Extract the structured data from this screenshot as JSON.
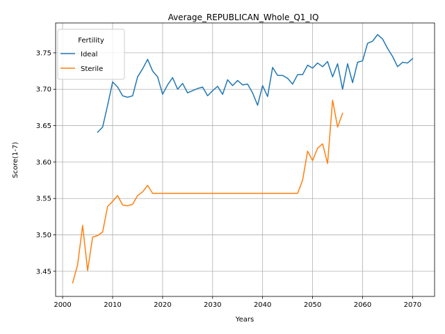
{
  "chart_data": {
    "type": "line",
    "title": "Average_REPUBLICAN_Whole_Q1_IQ",
    "xlabel": "Years",
    "ylabel": "Score(1-7)",
    "xlim": [
      1998.6,
      2074.4
    ],
    "ylim": [
      3.4155,
      3.791
    ],
    "xticks": [
      2000,
      2010,
      2020,
      2030,
      2040,
      2050,
      2060,
      2070
    ],
    "yticks": [
      3.45,
      3.5,
      3.55,
      3.6,
      3.65,
      3.7,
      3.75
    ],
    "grid": true,
    "legend": {
      "title": "Fertility",
      "placement": "upper-left"
    },
    "series": [
      {
        "name": "Ideal",
        "color": "#1f77b4",
        "x": [
          2007,
          2008,
          2009,
          2010,
          2011,
          2012,
          2013,
          2014,
          2015,
          2016,
          2017,
          2018,
          2019,
          2020,
          2021,
          2022,
          2023,
          2024,
          2025,
          2026,
          2027,
          2028,
          2029,
          2030,
          2031,
          2032,
          2033,
          2034,
          2035,
          2036,
          2037,
          2038,
          2039,
          2040,
          2041,
          2042,
          2043,
          2044,
          2045,
          2046,
          2047,
          2048,
          2049,
          2050,
          2051,
          2052,
          2053,
          2054,
          2055,
          2056,
          2057,
          2058,
          2059,
          2060,
          2061,
          2062,
          2063,
          2064,
          2065,
          2066,
          2067,
          2068,
          2069,
          2070
        ],
        "y": [
          3.641,
          3.648,
          3.678,
          3.71,
          3.703,
          3.691,
          3.689,
          3.691,
          3.717,
          3.728,
          3.741,
          3.725,
          3.717,
          3.693,
          3.706,
          3.716,
          3.7,
          3.708,
          3.695,
          3.698,
          3.701,
          3.703,
          3.691,
          3.698,
          3.704,
          3.693,
          3.713,
          3.705,
          3.712,
          3.706,
          3.707,
          3.695,
          3.678,
          3.705,
          3.69,
          3.73,
          3.719,
          3.719,
          3.715,
          3.707,
          3.72,
          3.72,
          3.733,
          3.729,
          3.736,
          3.731,
          3.738,
          3.717,
          3.735,
          3.7,
          3.735,
          3.709,
          3.737,
          3.739,
          3.763,
          3.766,
          3.775,
          3.769,
          3.756,
          3.745,
          3.731,
          3.737,
          3.736,
          3.742
        ]
      },
      {
        "name": "Sterile",
        "color": "#ff7f0e",
        "x": [
          2002,
          2003,
          2004,
          2005,
          2006,
          2007,
          2008,
          2009,
          2010,
          2011,
          2012,
          2013,
          2014,
          2015,
          2016,
          2017,
          2018,
          2019,
          2020,
          2021,
          2022,
          2023,
          2024,
          2025,
          2026,
          2027,
          2028,
          2029,
          2030,
          2031,
          2032,
          2033,
          2034,
          2035,
          2036,
          2037,
          2038,
          2039,
          2040,
          2041,
          2042,
          2043,
          2044,
          2045,
          2046,
          2047,
          2048,
          2049,
          2050,
          2051,
          2052,
          2053,
          2054,
          2055,
          2056
        ],
        "y": [
          3.434,
          3.459,
          3.513,
          3.451,
          3.497,
          3.499,
          3.504,
          3.539,
          3.546,
          3.554,
          3.541,
          3.54,
          3.542,
          3.554,
          3.559,
          3.568,
          3.557,
          3.557,
          3.557,
          3.557,
          3.557,
          3.557,
          3.557,
          3.557,
          3.557,
          3.557,
          3.557,
          3.557,
          3.557,
          3.557,
          3.557,
          3.557,
          3.557,
          3.557,
          3.557,
          3.557,
          3.557,
          3.557,
          3.557,
          3.557,
          3.557,
          3.557,
          3.557,
          3.557,
          3.557,
          3.557,
          3.575,
          3.615,
          3.602,
          3.619,
          3.625,
          3.598,
          3.685,
          3.648,
          3.667
        ]
      }
    ]
  }
}
